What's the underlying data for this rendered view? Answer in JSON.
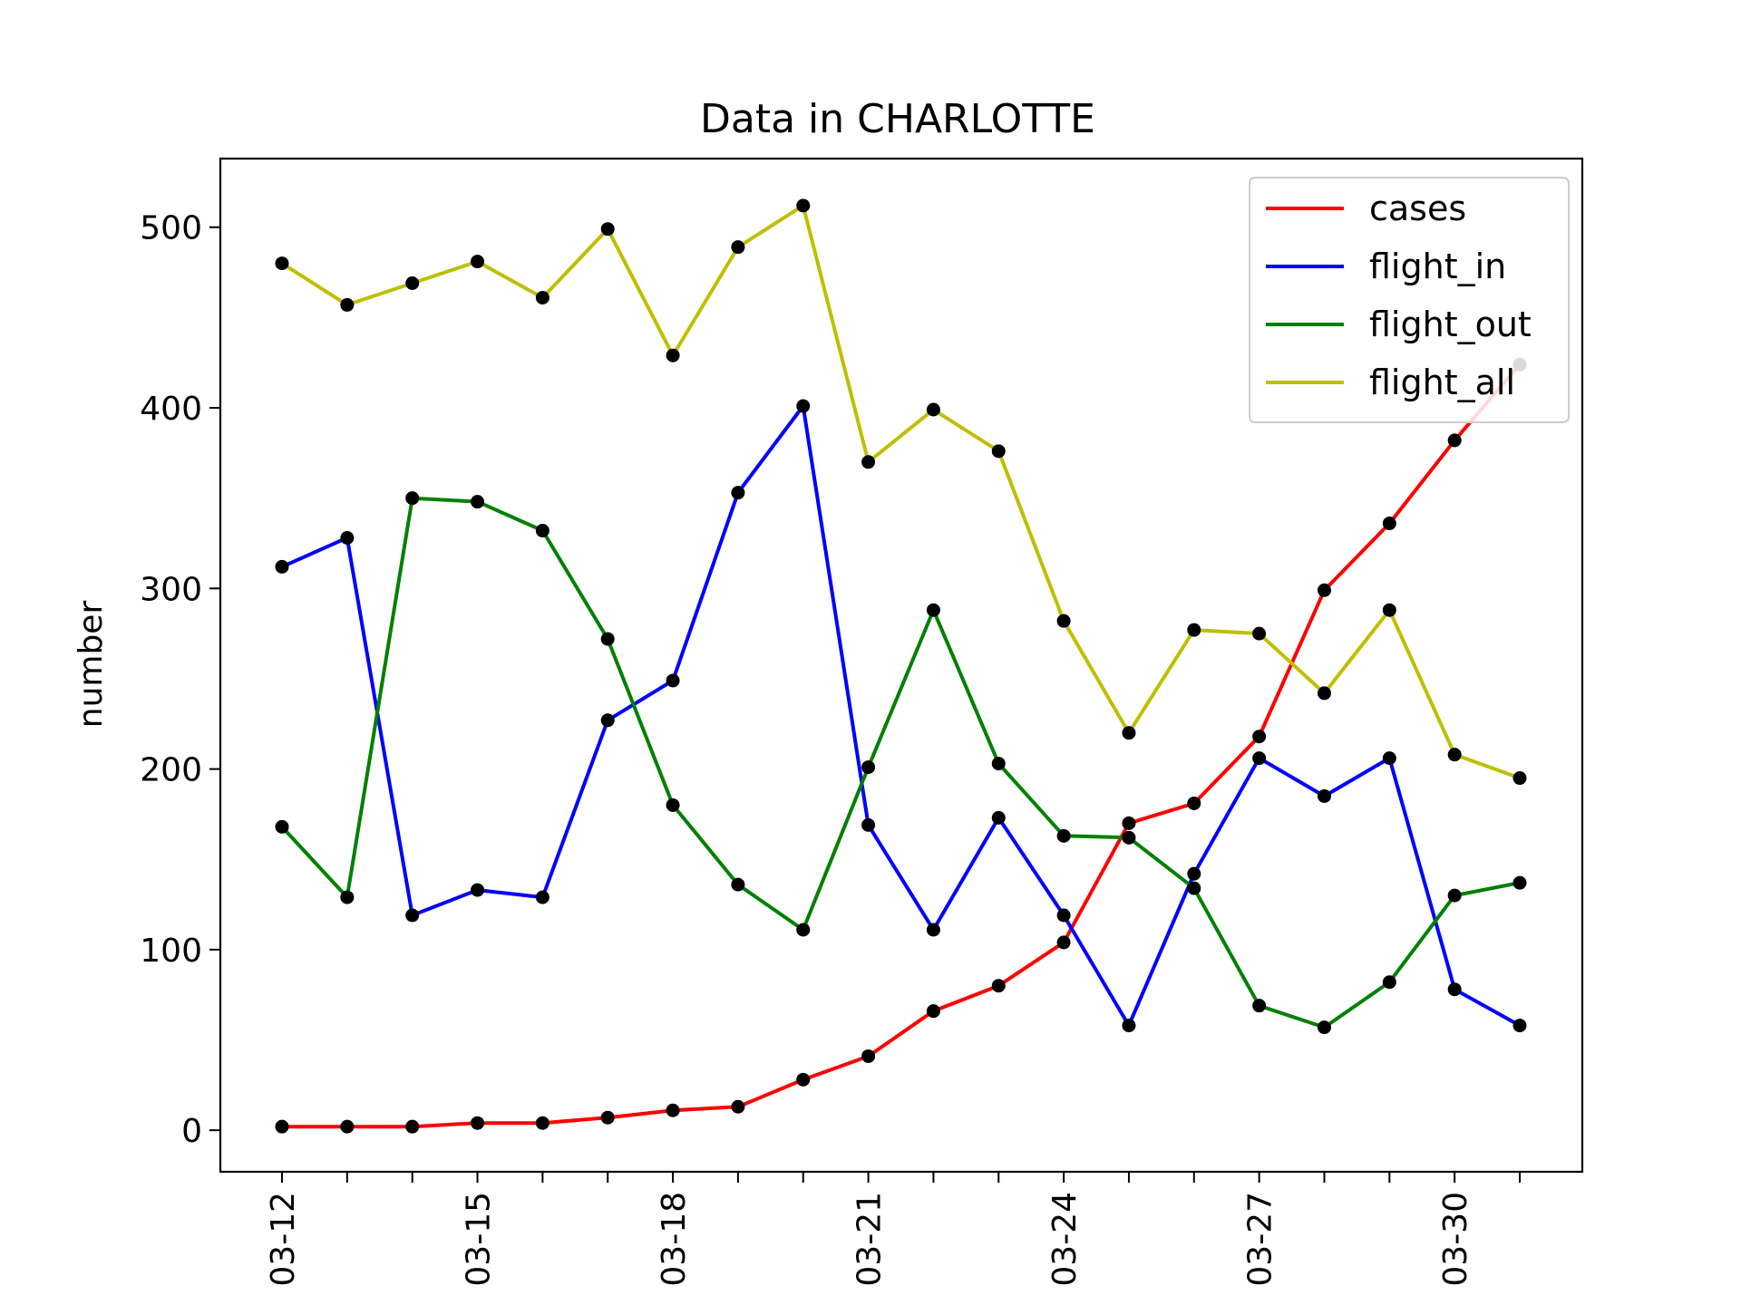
{
  "chart_data": {
    "type": "line",
    "title": "Data in CHARLOTTE",
    "xlabel": "",
    "ylabel": "number",
    "x": [
      "03-12",
      "03-13",
      "03-14",
      "03-15",
      "03-16",
      "03-17",
      "03-18",
      "03-19",
      "03-20",
      "03-21",
      "03-22",
      "03-23",
      "03-24",
      "03-25",
      "03-26",
      "03-27",
      "03-28",
      "03-29",
      "03-30",
      "03-31"
    ],
    "x_tick_labels": [
      "03-12",
      "03-15",
      "03-18",
      "03-21",
      "03-24",
      "03-27",
      "03-30"
    ],
    "yticks": [
      0,
      100,
      200,
      300,
      400,
      500
    ],
    "ylim": [
      -23,
      538
    ],
    "grid": false,
    "legend_position": "top-right",
    "marker_color": "#000000",
    "series": [
      {
        "name": "cases",
        "color": "#ff0000",
        "values": [
          2,
          2,
          2,
          4,
          4,
          7,
          11,
          13,
          28,
          41,
          66,
          80,
          104,
          170,
          181,
          218,
          299,
          336,
          382,
          424
        ]
      },
      {
        "name": "flight_in",
        "color": "#0000ff",
        "values": [
          312,
          328,
          119,
          133,
          129,
          227,
          249,
          353,
          401,
          169,
          111,
          173,
          119,
          58,
          142,
          206,
          185,
          206,
          78,
          58
        ]
      },
      {
        "name": "flight_out",
        "color": "#008000",
        "values": [
          168,
          129,
          350,
          348,
          332,
          272,
          180,
          136,
          111,
          201,
          288,
          203,
          163,
          162,
          134,
          69,
          57,
          82,
          130,
          137
        ]
      },
      {
        "name": "flight_all",
        "color": "#bfbf00",
        "values": [
          480,
          457,
          469,
          481,
          461,
          499,
          429,
          489,
          512,
          370,
          399,
          376,
          282,
          220,
          277,
          275,
          242,
          288,
          208,
          195
        ]
      }
    ]
  }
}
